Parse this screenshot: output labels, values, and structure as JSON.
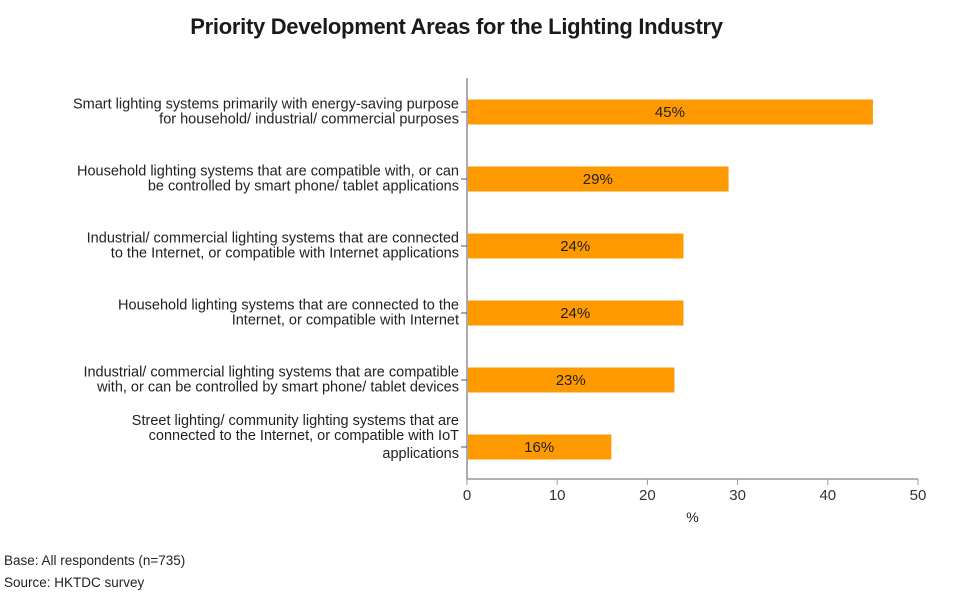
{
  "chart_data": {
    "type": "bar",
    "orientation": "horizontal",
    "title": "Priority Development Areas for the Lighting Industry",
    "xlabel": "%",
    "ylabel": "",
    "xlim": [
      0,
      50
    ],
    "xticks": [
      0,
      10,
      20,
      30,
      40,
      50
    ],
    "grid": false,
    "bar_color": "#FF9900",
    "categories": [
      [
        "Smart lighting systems primarily with energy-saving purpose",
        "for household/ industrial/ commercial purposes"
      ],
      [
        "Household lighting systems that are compatible with, or can",
        "be controlled by smart phone/ tablet applications"
      ],
      [
        "Industrial/ commercial lighting systems that are connected",
        "to the Internet, or compatible with Internet applications"
      ],
      [
        "Household lighting systems that are connected to the",
        "Internet, or compatible with Internet"
      ],
      [
        "Industrial/ commercial lighting systems that are compatible",
        "with, or can be controlled by smart phone/ tablet devices"
      ],
      [
        "Street lighting/ community lighting systems that are",
        "connected to the Internet, or compatible with IoT",
        "applications"
      ]
    ],
    "values": [
      45,
      29,
      24,
      24,
      23,
      16
    ],
    "data_labels": [
      "45%",
      "29%",
      "24%",
      "24%",
      "23%",
      "16%"
    ]
  },
  "footnotes": {
    "base": "Base: All respondents (n=735)",
    "source": "Source: HKTDC survey"
  }
}
